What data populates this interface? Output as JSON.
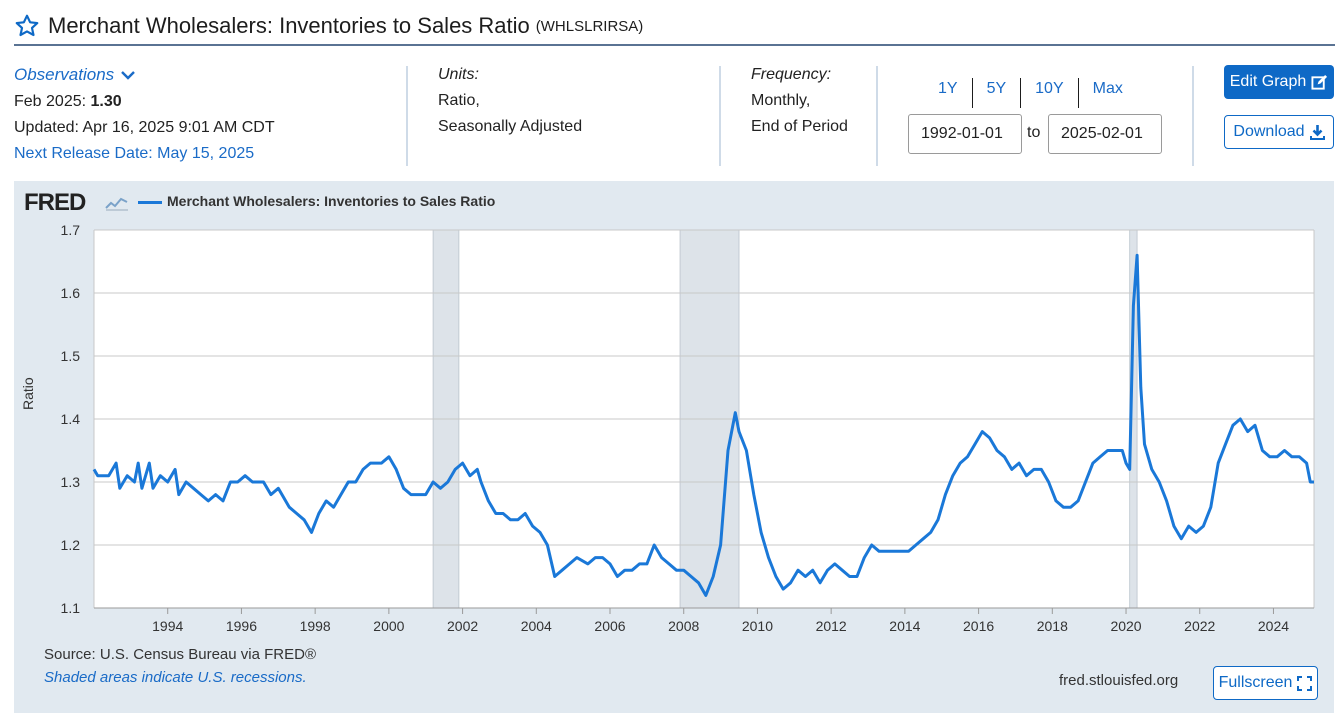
{
  "header": {
    "title": "Merchant Wholesalers: Inventories to Sales Ratio",
    "series_id": "(WHLSLRIRSA)",
    "star_icon": "star-outline-icon"
  },
  "observations": {
    "label": "Observations",
    "date_label": "Feb 2025:",
    "value": "1.30",
    "updated": "Updated: Apr 16, 2025 9:01 AM CDT",
    "next_release": "Next Release Date: May 15, 2025"
  },
  "units": {
    "label": "Units:",
    "line1": "Ratio,",
    "line2": "Seasonally Adjusted"
  },
  "frequency": {
    "label": "Frequency:",
    "line1": "Monthly,",
    "line2": "End of Period"
  },
  "range": {
    "buttons": [
      "1Y",
      "5Y",
      "10Y",
      "Max"
    ],
    "start": "1992-01-01",
    "to_label": "to",
    "end": "2025-02-01"
  },
  "actions": {
    "edit_graph": "Edit Graph",
    "download": "Download",
    "fullscreen": "Fullscreen"
  },
  "graph": {
    "logo": "FRED",
    "legend": "Merchant Wholesalers: Inventories to Sales Ratio",
    "ylabel": "Ratio",
    "source": "Source: U.S. Census Bureau via FRED®",
    "shade_note": "Shaded areas indicate U.S. recessions.",
    "url": "fred.stlouisfed.org"
  },
  "colors": {
    "accent": "#0e69c6",
    "line": "#1a78d8",
    "recession": "#dde3e9",
    "panel": "#e1e9f0"
  },
  "chart_data": {
    "type": "line",
    "title": "",
    "xlabel": "",
    "ylabel": "Ratio",
    "ylim": [
      1.1,
      1.7
    ],
    "xlim": [
      1992.0,
      2025.1
    ],
    "y_ticks": [
      "1.1",
      "1.2",
      "1.3",
      "1.4",
      "1.5",
      "1.6",
      "1.7"
    ],
    "x_ticks": [
      "1994",
      "1996",
      "1998",
      "2000",
      "2002",
      "2004",
      "2006",
      "2008",
      "2010",
      "2012",
      "2014",
      "2016",
      "2018",
      "2020",
      "2022",
      "2024"
    ],
    "recessions": [
      [
        2001.2,
        2001.9
      ],
      [
        2007.9,
        2009.5
      ],
      [
        2020.1,
        2020.3
      ]
    ],
    "series": [
      {
        "name": "Merchant Wholesalers: Inventories to Sales Ratio",
        "points": [
          [
            1992.0,
            1.32
          ],
          [
            1992.1,
            1.31
          ],
          [
            1992.4,
            1.31
          ],
          [
            1992.6,
            1.33
          ],
          [
            1992.7,
            1.29
          ],
          [
            1992.9,
            1.31
          ],
          [
            1993.1,
            1.3
          ],
          [
            1993.2,
            1.33
          ],
          [
            1993.3,
            1.29
          ],
          [
            1993.5,
            1.33
          ],
          [
            1993.6,
            1.29
          ],
          [
            1993.8,
            1.31
          ],
          [
            1994.0,
            1.3
          ],
          [
            1994.2,
            1.32
          ],
          [
            1994.3,
            1.28
          ],
          [
            1994.5,
            1.3
          ],
          [
            1994.7,
            1.29
          ],
          [
            1994.9,
            1.28
          ],
          [
            1995.1,
            1.27
          ],
          [
            1995.3,
            1.28
          ],
          [
            1995.5,
            1.27
          ],
          [
            1995.7,
            1.3
          ],
          [
            1995.9,
            1.3
          ],
          [
            1996.1,
            1.31
          ],
          [
            1996.3,
            1.3
          ],
          [
            1996.6,
            1.3
          ],
          [
            1996.8,
            1.28
          ],
          [
            1997.0,
            1.29
          ],
          [
            1997.3,
            1.26
          ],
          [
            1997.5,
            1.25
          ],
          [
            1997.7,
            1.24
          ],
          [
            1997.9,
            1.22
          ],
          [
            1998.1,
            1.25
          ],
          [
            1998.3,
            1.27
          ],
          [
            1998.5,
            1.26
          ],
          [
            1998.7,
            1.28
          ],
          [
            1998.9,
            1.3
          ],
          [
            1999.1,
            1.3
          ],
          [
            1999.3,
            1.32
          ],
          [
            1999.5,
            1.33
          ],
          [
            1999.8,
            1.33
          ],
          [
            2000.0,
            1.34
          ],
          [
            2000.2,
            1.32
          ],
          [
            2000.4,
            1.29
          ],
          [
            2000.6,
            1.28
          ],
          [
            2000.8,
            1.28
          ],
          [
            2001.0,
            1.28
          ],
          [
            2001.2,
            1.3
          ],
          [
            2001.4,
            1.29
          ],
          [
            2001.6,
            1.3
          ],
          [
            2001.8,
            1.32
          ],
          [
            2002.0,
            1.33
          ],
          [
            2002.2,
            1.31
          ],
          [
            2002.4,
            1.32
          ],
          [
            2002.5,
            1.3
          ],
          [
            2002.7,
            1.27
          ],
          [
            2002.9,
            1.25
          ],
          [
            2003.1,
            1.25
          ],
          [
            2003.3,
            1.24
          ],
          [
            2003.5,
            1.24
          ],
          [
            2003.7,
            1.25
          ],
          [
            2003.9,
            1.23
          ],
          [
            2004.1,
            1.22
          ],
          [
            2004.3,
            1.2
          ],
          [
            2004.5,
            1.15
          ],
          [
            2004.7,
            1.16
          ],
          [
            2004.9,
            1.17
          ],
          [
            2005.1,
            1.18
          ],
          [
            2005.4,
            1.17
          ],
          [
            2005.6,
            1.18
          ],
          [
            2005.8,
            1.18
          ],
          [
            2006.0,
            1.17
          ],
          [
            2006.2,
            1.15
          ],
          [
            2006.4,
            1.16
          ],
          [
            2006.6,
            1.16
          ],
          [
            2006.8,
            1.17
          ],
          [
            2007.0,
            1.17
          ],
          [
            2007.2,
            1.2
          ],
          [
            2007.4,
            1.18
          ],
          [
            2007.6,
            1.17
          ],
          [
            2007.8,
            1.16
          ],
          [
            2008.0,
            1.16
          ],
          [
            2008.2,
            1.15
          ],
          [
            2008.4,
            1.14
          ],
          [
            2008.6,
            1.12
          ],
          [
            2008.8,
            1.15
          ],
          [
            2009.0,
            1.2
          ],
          [
            2009.2,
            1.35
          ],
          [
            2009.4,
            1.41
          ],
          [
            2009.5,
            1.38
          ],
          [
            2009.7,
            1.35
          ],
          [
            2009.9,
            1.28
          ],
          [
            2010.1,
            1.22
          ],
          [
            2010.3,
            1.18
          ],
          [
            2010.5,
            1.15
          ],
          [
            2010.7,
            1.13
          ],
          [
            2010.9,
            1.14
          ],
          [
            2011.1,
            1.16
          ],
          [
            2011.3,
            1.15
          ],
          [
            2011.5,
            1.16
          ],
          [
            2011.7,
            1.14
          ],
          [
            2011.9,
            1.16
          ],
          [
            2012.1,
            1.17
          ],
          [
            2012.3,
            1.16
          ],
          [
            2012.5,
            1.15
          ],
          [
            2012.7,
            1.15
          ],
          [
            2012.9,
            1.18
          ],
          [
            2013.1,
            1.2
          ],
          [
            2013.3,
            1.19
          ],
          [
            2013.5,
            1.19
          ],
          [
            2013.7,
            1.19
          ],
          [
            2013.9,
            1.19
          ],
          [
            2014.1,
            1.19
          ],
          [
            2014.3,
            1.2
          ],
          [
            2014.5,
            1.21
          ],
          [
            2014.7,
            1.22
          ],
          [
            2014.9,
            1.24
          ],
          [
            2015.1,
            1.28
          ],
          [
            2015.3,
            1.31
          ],
          [
            2015.5,
            1.33
          ],
          [
            2015.7,
            1.34
          ],
          [
            2015.9,
            1.36
          ],
          [
            2016.1,
            1.38
          ],
          [
            2016.3,
            1.37
          ],
          [
            2016.5,
            1.35
          ],
          [
            2016.7,
            1.34
          ],
          [
            2016.9,
            1.32
          ],
          [
            2017.1,
            1.33
          ],
          [
            2017.3,
            1.31
          ],
          [
            2017.5,
            1.32
          ],
          [
            2017.7,
            1.32
          ],
          [
            2017.9,
            1.3
          ],
          [
            2018.1,
            1.27
          ],
          [
            2018.3,
            1.26
          ],
          [
            2018.5,
            1.26
          ],
          [
            2018.7,
            1.27
          ],
          [
            2018.9,
            1.3
          ],
          [
            2019.1,
            1.33
          ],
          [
            2019.3,
            1.34
          ],
          [
            2019.5,
            1.35
          ],
          [
            2019.7,
            1.35
          ],
          [
            2019.9,
            1.35
          ],
          [
            2020.0,
            1.33
          ],
          [
            2020.1,
            1.32
          ],
          [
            2020.2,
            1.58
          ],
          [
            2020.3,
            1.66
          ],
          [
            2020.4,
            1.45
          ],
          [
            2020.5,
            1.36
          ],
          [
            2020.7,
            1.32
          ],
          [
            2020.9,
            1.3
          ],
          [
            2021.1,
            1.27
          ],
          [
            2021.3,
            1.23
          ],
          [
            2021.5,
            1.21
          ],
          [
            2021.7,
            1.23
          ],
          [
            2021.9,
            1.22
          ],
          [
            2022.1,
            1.23
          ],
          [
            2022.3,
            1.26
          ],
          [
            2022.5,
            1.33
          ],
          [
            2022.7,
            1.36
          ],
          [
            2022.9,
            1.39
          ],
          [
            2023.1,
            1.4
          ],
          [
            2023.3,
            1.38
          ],
          [
            2023.5,
            1.39
          ],
          [
            2023.7,
            1.35
          ],
          [
            2023.9,
            1.34
          ],
          [
            2024.1,
            1.34
          ],
          [
            2024.3,
            1.35
          ],
          [
            2024.5,
            1.34
          ],
          [
            2024.7,
            1.34
          ],
          [
            2024.9,
            1.33
          ],
          [
            2025.0,
            1.3
          ],
          [
            2025.1,
            1.3
          ]
        ]
      }
    ]
  }
}
